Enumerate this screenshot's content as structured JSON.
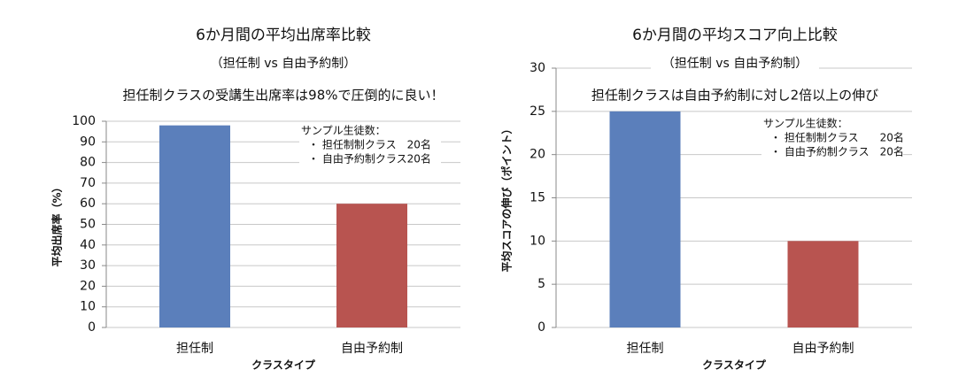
{
  "chart_data": [
    {
      "type": "bar",
      "title": "6か月間の平均出席率比較",
      "subtitle": "（担任制 vs 自由予約制）",
      "annotation": "担任制クラスの受講生出席率は98%で圧倒的に良い！",
      "notes": [
        "サンプル生徒数：",
        "・ 担任制制クラス　20名",
        "・ 自由予約制クラス20名"
      ],
      "x_label": "クラスタイプ",
      "y_label": "平均出席率（%）",
      "categories": [
        "担任制",
        "自由予約制"
      ],
      "values": [
        98,
        60
      ],
      "colors": [
        "#5b7fbb",
        "#b85450"
      ],
      "ylim": [
        0,
        100
      ],
      "yticks": [
        0,
        10,
        20,
        30,
        40,
        50,
        60,
        70,
        80,
        90,
        100
      ],
      "grid": true
    },
    {
      "type": "bar",
      "title": "6か月間の平均スコア向上比較",
      "subtitle": "（担任制 vs 自由予約制）",
      "annotation": "担任制クラスは自由予約制に対し2倍以上の伸び",
      "notes": [
        "サンプル生徒数：",
        "・ 担任制制クラス　　20名",
        "・ 自由予約制クラス　20名"
      ],
      "x_label": "クラスタイプ",
      "y_label": "平均スコアの伸び（ポイント）",
      "categories": [
        "担任制",
        "自由予約制"
      ],
      "values": [
        25,
        10
      ],
      "colors": [
        "#5b7fbb",
        "#b85450"
      ],
      "ylim": [
        0,
        30
      ],
      "yticks": [
        0,
        5,
        10,
        15,
        20,
        25,
        30
      ],
      "grid": true
    }
  ]
}
